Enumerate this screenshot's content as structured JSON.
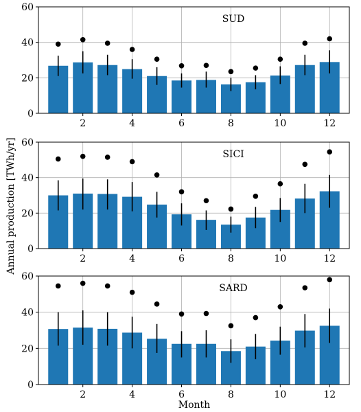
{
  "chart_data": {
    "type": "bar",
    "xlabel": "Month",
    "ylabel": "Annual production [TWh/yr]",
    "x_ticks": [
      2,
      4,
      6,
      8,
      10,
      12
    ],
    "y_ticks": [
      0,
      20,
      40,
      60
    ],
    "xlim": [
      0.2,
      12.8
    ],
    "grid": true,
    "colors": {
      "bar": "#1f77b4",
      "marker": "#000000"
    },
    "panels": [
      {
        "title": "SUD",
        "ylim": [
          0,
          60
        ],
        "months": [
          1,
          2,
          3,
          4,
          5,
          6,
          7,
          8,
          9,
          10,
          11,
          12
        ],
        "bar_values": [
          26.8,
          28.7,
          27.2,
          24.9,
          21.0,
          18.5,
          18.8,
          16.3,
          17.5,
          21.3,
          27.2,
          28.9
        ],
        "error_low": [
          21.0,
          22.5,
          21.5,
          19.5,
          16.0,
          14.5,
          14.5,
          12.5,
          13.5,
          16.5,
          21.5,
          22.5
        ],
        "error_high": [
          32.5,
          35.0,
          33.0,
          30.5,
          26.0,
          22.5,
          23.5,
          20.0,
          21.5,
          26.5,
          33.0,
          35.5
        ],
        "dot_values": [
          39.0,
          41.5,
          39.5,
          36.0,
          30.5,
          26.8,
          27.0,
          23.5,
          25.5,
          30.5,
          39.5,
          42.0
        ]
      },
      {
        "title": "SICI",
        "ylim": [
          0,
          60
        ],
        "months": [
          1,
          2,
          3,
          4,
          5,
          6,
          7,
          8,
          9,
          10,
          11,
          12
        ],
        "bar_values": [
          30.0,
          31.0,
          30.8,
          29.2,
          24.8,
          19.3,
          16.2,
          13.5,
          17.5,
          21.8,
          28.2,
          32.3
        ],
        "error_low": [
          21.5,
          22.0,
          22.0,
          21.0,
          17.5,
          13.0,
          10.5,
          9.0,
          11.5,
          15.0,
          20.0,
          23.0
        ],
        "error_high": [
          38.5,
          39.5,
          39.0,
          37.5,
          32.0,
          25.5,
          21.5,
          18.0,
          23.5,
          28.5,
          36.5,
          41.5
        ],
        "dot_values": [
          50.5,
          52.0,
          51.5,
          49.0,
          41.5,
          32.0,
          27.0,
          22.3,
          29.5,
          36.5,
          47.5,
          54.5
        ]
      },
      {
        "title": "SARD",
        "ylim": [
          0,
          60
        ],
        "months": [
          1,
          2,
          3,
          4,
          5,
          6,
          7,
          8,
          9,
          10,
          11,
          12
        ],
        "bar_values": [
          30.7,
          31.5,
          30.8,
          28.7,
          25.3,
          22.5,
          22.5,
          18.5,
          21.0,
          24.3,
          29.8,
          32.5
        ],
        "error_low": [
          21.5,
          22.0,
          21.5,
          20.0,
          17.5,
          15.0,
          15.0,
          12.0,
          14.0,
          16.5,
          20.5,
          23.0
        ],
        "error_high": [
          40.0,
          41.0,
          40.0,
          37.5,
          33.5,
          29.5,
          30.0,
          25.0,
          28.0,
          32.0,
          39.0,
          42.0
        ],
        "dot_values": [
          54.5,
          56.0,
          54.5,
          51.0,
          44.5,
          39.0,
          39.3,
          32.5,
          37.0,
          43.0,
          53.5,
          58.0
        ]
      }
    ]
  }
}
